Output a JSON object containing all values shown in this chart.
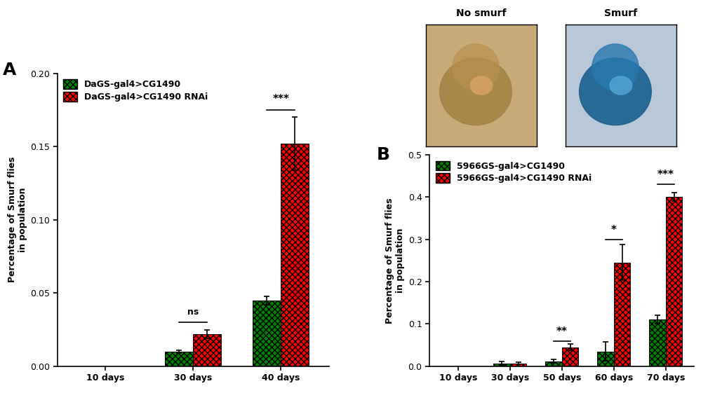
{
  "panel_A": {
    "categories": [
      "10 days",
      "30 days",
      "40 days"
    ],
    "green_values": [
      0.0,
      0.01,
      0.045
    ],
    "red_values": [
      0.0,
      0.022,
      0.152
    ],
    "green_errors": [
      0.0,
      0.001,
      0.003
    ],
    "red_errors": [
      0.0,
      0.003,
      0.018
    ],
    "ylim": [
      0.0,
      0.2
    ],
    "yticks": [
      0.0,
      0.05,
      0.1,
      0.15,
      0.2
    ],
    "ylabel": "Percentage of Smurf flies\nin population",
    "sig_labels": [
      null,
      "ns",
      "***"
    ],
    "sig_x_indices": [
      null,
      1,
      2
    ],
    "sig_positions": [
      null,
      0.03,
      0.175
    ],
    "legend_green": "DaGS-gal4>CG1490",
    "legend_red": "DaGS-gal4>CG1490 RNAi",
    "panel_label": "A"
  },
  "panel_B": {
    "categories": [
      "10 days",
      "30 days",
      "50 days",
      "60 days",
      "70 days"
    ],
    "green_values": [
      0.0,
      0.007,
      0.012,
      0.035,
      0.11
    ],
    "red_values": [
      0.0,
      0.007,
      0.045,
      0.245,
      0.4
    ],
    "green_errors": [
      0.0,
      0.004,
      0.004,
      0.022,
      0.01
    ],
    "red_errors": [
      0.0,
      0.003,
      0.007,
      0.042,
      0.01
    ],
    "ylim": [
      0.0,
      0.5
    ],
    "yticks": [
      0.0,
      0.1,
      0.2,
      0.3,
      0.4,
      0.5
    ],
    "ylabel": "Percentage of Smurf flies\nin population",
    "sig_labels": [
      null,
      null,
      "**",
      "*",
      "***"
    ],
    "sig_x_indices": [
      null,
      null,
      2,
      3,
      4
    ],
    "sig_positions": [
      null,
      null,
      0.06,
      0.3,
      0.43
    ],
    "legend_green": "5966GS-gal4>CG1490",
    "legend_red": "5966GS-gal4>CG1490 RNAi",
    "panel_label": "B"
  },
  "green_color": "#008000",
  "red_color": "#FF0000",
  "bar_width": 0.32,
  "background_color": "#ffffff",
  "nosmurf_color": "#c8aa78",
  "smurf_color": "#4090c8",
  "title_nosmurf": "No smurf",
  "title_smurf": "Smurf"
}
